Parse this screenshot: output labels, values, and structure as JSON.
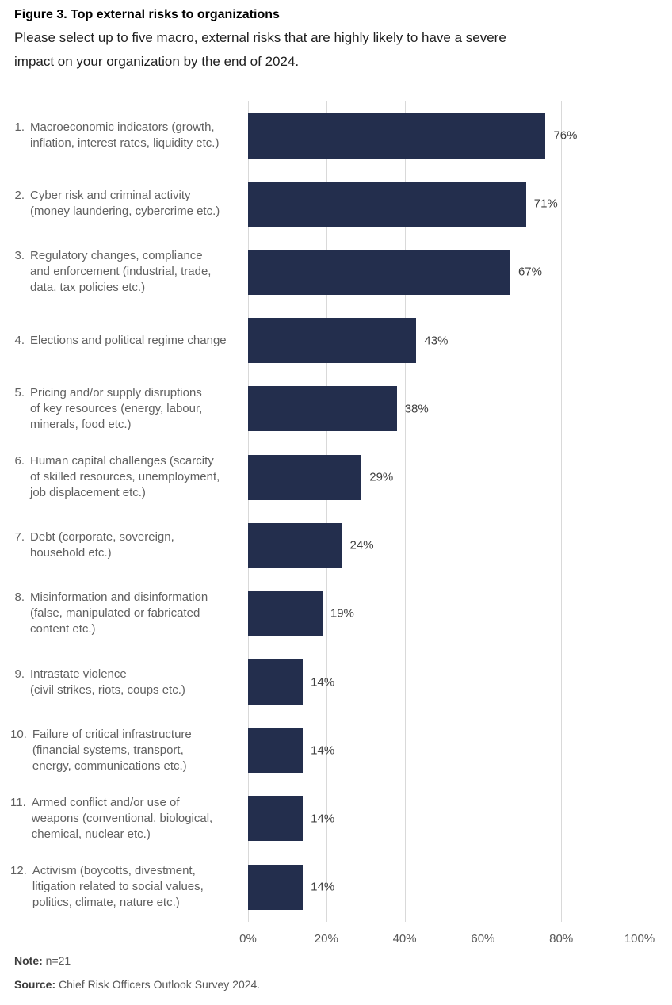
{
  "header": {
    "title": "Figure 3. Top external risks to organizations",
    "subtitle": "Please select up to five macro, external risks that are highly likely to have a severe\nimpact on your organization by the end of 2024."
  },
  "chart_data": {
    "type": "bar",
    "orientation": "horizontal",
    "title": "Figure 3. Top external risks to organizations",
    "subtitle": "Please select up to five macro, external risks that are highly likely to have a severe impact on your organization by the end of 2024.",
    "categories": [
      {
        "num": "1.",
        "label": "Macroeconomic indicators (growth,\ninflation, interest rates, liquidity etc.)"
      },
      {
        "num": "2.",
        "label": "Cyber risk and criminal activity\n(money laundering, cybercrime etc.)"
      },
      {
        "num": "3.",
        "label": "Regulatory changes, compliance\nand enforcement (industrial, trade,\ndata, tax policies etc.)"
      },
      {
        "num": "4.",
        "label": "Elections and political regime change"
      },
      {
        "num": "5.",
        "label": "Pricing and/or supply disruptions\nof key resources (energy, labour,\nminerals, food etc.)"
      },
      {
        "num": "6.",
        "label": "Human capital challenges (scarcity\nof skilled resources, unemployment,\njob displacement etc.)"
      },
      {
        "num": "7.",
        "label": "Debt (corporate, sovereign,\nhousehold etc.)"
      },
      {
        "num": "8.",
        "label": "Misinformation and disinformation\n(false, manipulated or fabricated\ncontent etc.)"
      },
      {
        "num": "9.",
        "label": "Intrastate violence\n(civil strikes, riots, coups etc.)"
      },
      {
        "num": "10.",
        "label": "Failure of critical infrastructure\n(financial systems, transport,\nenergy, communications etc.)"
      },
      {
        "num": "11.",
        "label": "Armed conflict and/or use of\nweapons (conventional, biological,\nchemical, nuclear etc.)"
      },
      {
        "num": "12.",
        "label": "Activism (boycotts, divestment,\nlitigation related to social values,\npolitics, climate, nature etc.)"
      }
    ],
    "values": [
      76,
      71,
      67,
      43,
      38,
      29,
      24,
      19,
      14,
      14,
      14,
      14
    ],
    "value_labels": [
      "76%",
      "71%",
      "67%",
      "43%",
      "38%",
      "29%",
      "24%",
      "19%",
      "14%",
      "14%",
      "14%",
      "14%"
    ],
    "x_ticks": [
      "0%",
      "20%",
      "40%",
      "60%",
      "80%",
      "100%"
    ],
    "xlim": [
      0,
      100
    ],
    "grid": true,
    "bar_color": "#232E4D",
    "grid_color": "#D9D9D9"
  },
  "footer": {
    "note_label": "Note:",
    "note_text": "n=21",
    "source_label": "Source:",
    "source_text": "Chief Risk Officers Outlook Survey 2024."
  }
}
